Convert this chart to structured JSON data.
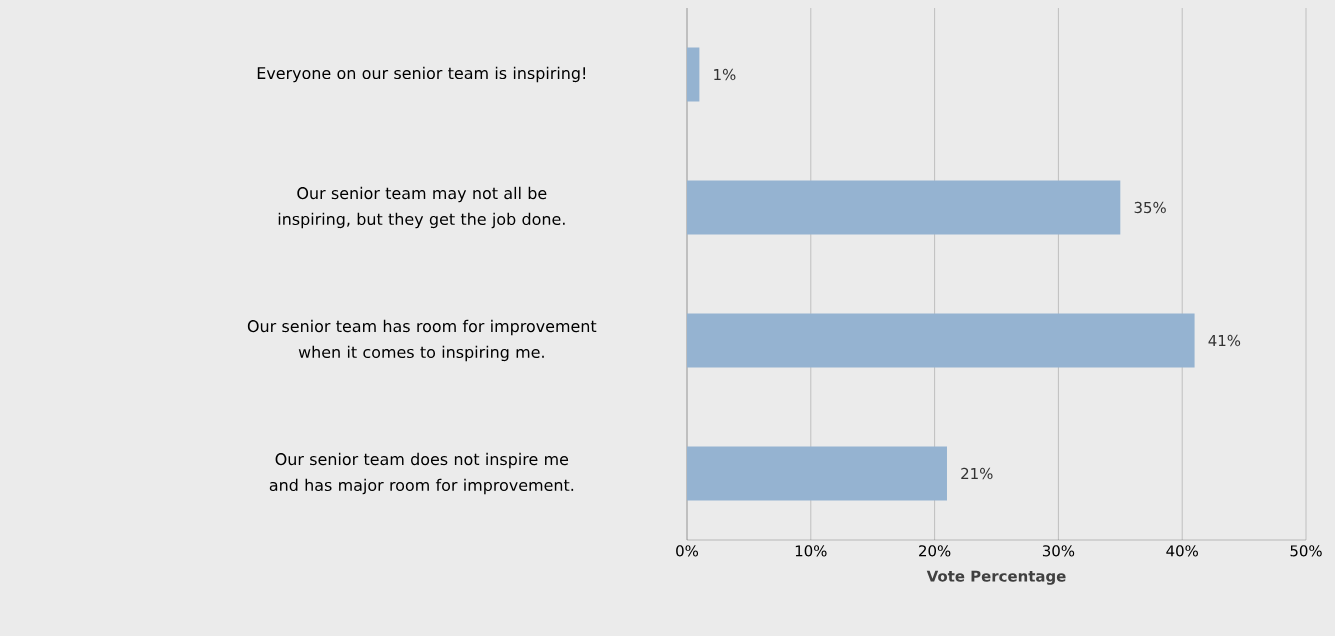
{
  "chart_data": {
    "type": "bar",
    "orientation": "horizontal",
    "xlabel": "Vote Percentage",
    "categories": [
      "Everyone on our senior team is inspiring!",
      "Our senior team may not all be inspiring, but they get the job done.",
      "Our senior team has room for improvement when it comes to inspiring me.",
      "Our senior team does not inspire me and has major room for improvement."
    ],
    "values": [
      1,
      35,
      41,
      21
    ],
    "value_labels": [
      "1%",
      "35%",
      "41%",
      "21%"
    ],
    "color": "#95b3d1",
    "xlim": [
      0,
      50
    ],
    "xticks": [
      {
        "value": 0,
        "label": "0%"
      },
      {
        "value": 10,
        "label": "10%"
      },
      {
        "value": 20,
        "label": "20%"
      },
      {
        "value": 30,
        "label": "30%"
      },
      {
        "value": 40,
        "label": "40%"
      },
      {
        "value": 50,
        "label": "50%"
      }
    ],
    "grid": "x"
  }
}
